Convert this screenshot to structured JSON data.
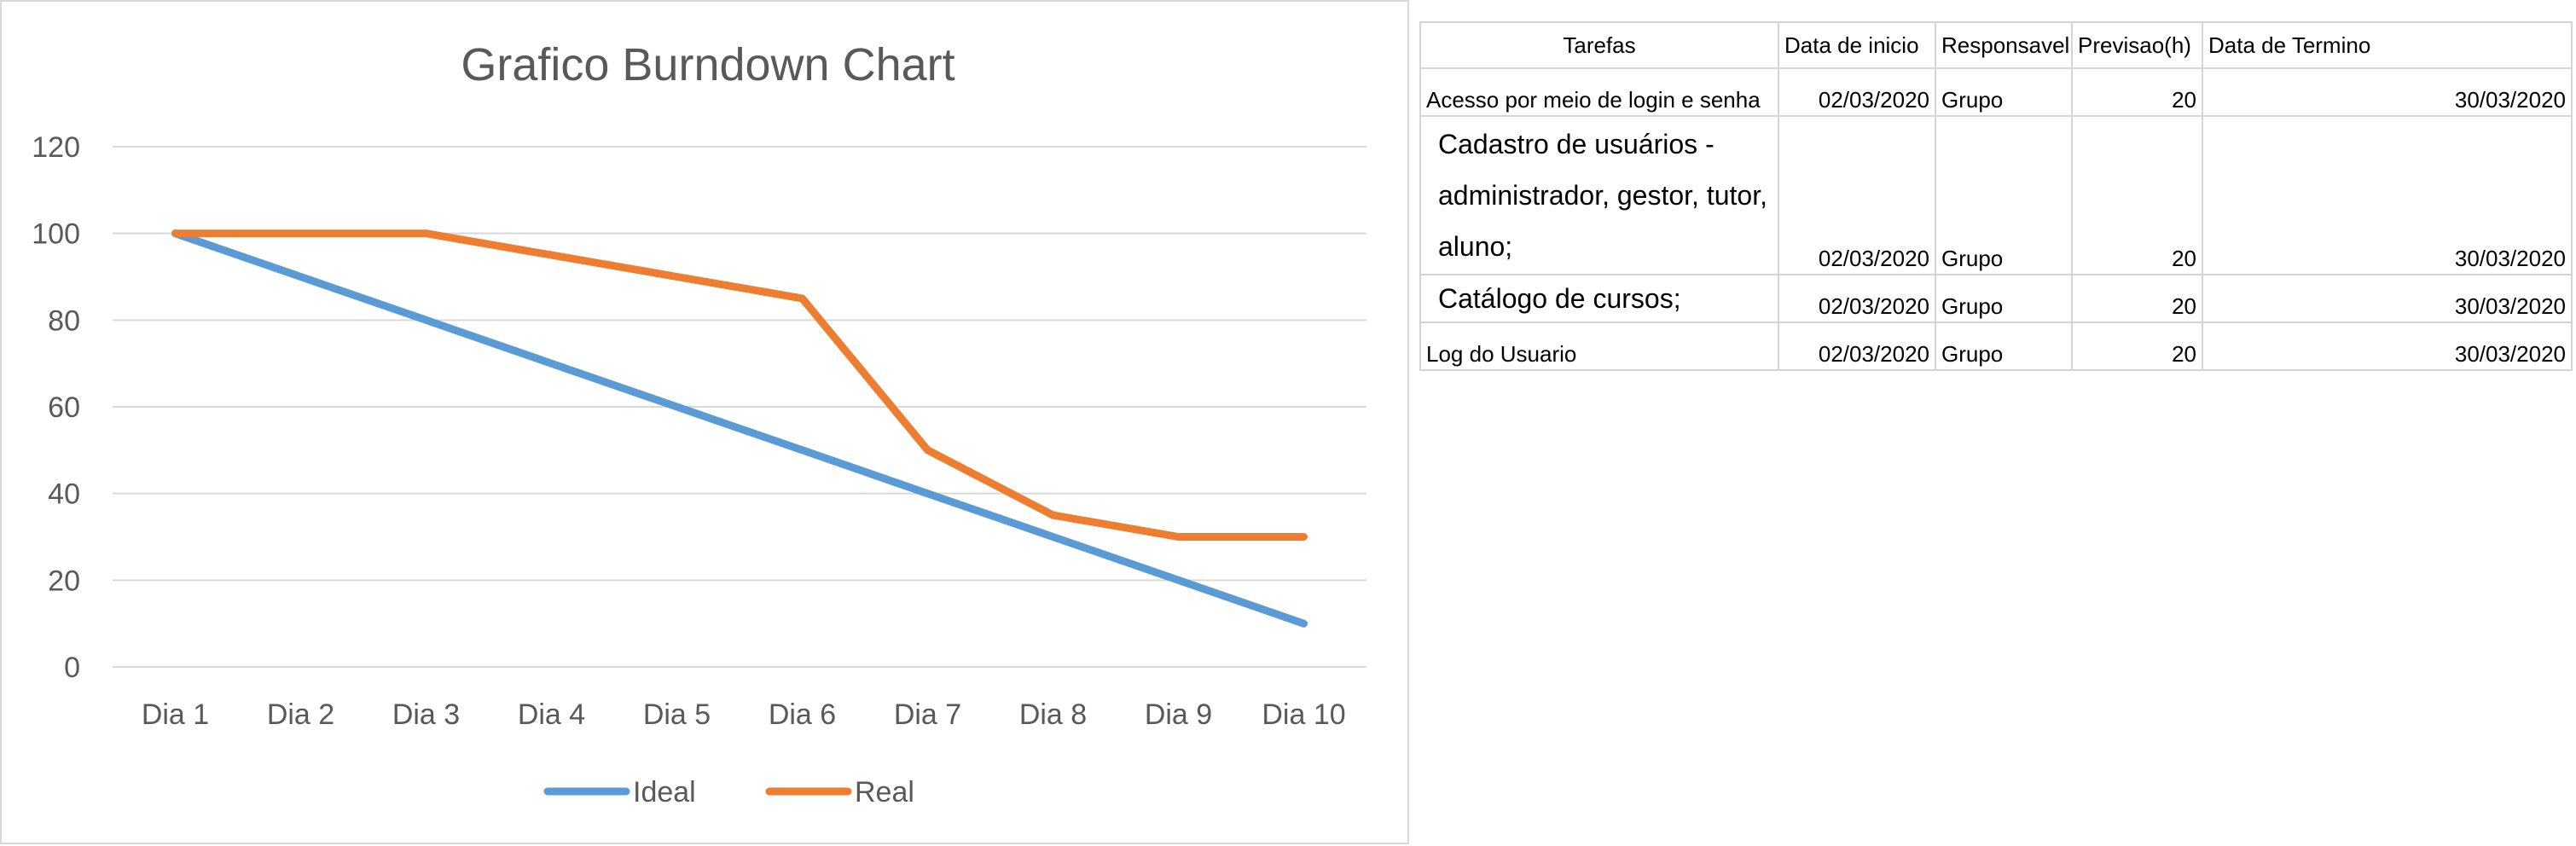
{
  "chart_data": {
    "type": "line",
    "title": "Grafico Burndown Chart",
    "categories": [
      "Dia 1",
      "Dia 2",
      "Dia 3",
      "Dia 4",
      "Dia 5",
      "Dia 6",
      "Dia 7",
      "Dia 8",
      "Dia 9",
      "Dia 10"
    ],
    "y_ticks": [
      "0",
      "20",
      "40",
      "60",
      "80",
      "100",
      "120"
    ],
    "ylim": [
      0,
      120
    ],
    "grid": true,
    "legend_position": "bottom",
    "series": [
      {
        "name": "Ideal",
        "color": "#5b9bd5",
        "values": [
          100,
          90,
          80,
          70,
          60,
          50,
          40,
          30,
          20,
          10
        ]
      },
      {
        "name": "Real",
        "color": "#ed7d31",
        "values": [
          100,
          100,
          100,
          95,
          90,
          85,
          50,
          35,
          30,
          30
        ]
      }
    ]
  },
  "table": {
    "headers": [
      "Tarefas",
      "Data de inicio",
      "Responsavel",
      "Previsao(h)",
      "Data de Termino"
    ],
    "rows": [
      {
        "task": "Acesso por meio de login e senha",
        "start": "02/03/2020",
        "resp": "Grupo",
        "hours": "20",
        "end": "30/03/2020"
      },
      {
        "task": "Cadastro de usuários - administrador, gestor, tutor, aluno;",
        "start": "02/03/2020",
        "resp": "Grupo",
        "hours": "20",
        "end": "30/03/2020"
      },
      {
        "task": "Catálogo de cursos;",
        "start": "02/03/2020",
        "resp": "Grupo",
        "hours": "20",
        "end": "30/03/2020"
      },
      {
        "task": "Log do Usuario",
        "start": "02/03/2020",
        "resp": "Grupo",
        "hours": "20",
        "end": "30/03/2020"
      }
    ]
  }
}
